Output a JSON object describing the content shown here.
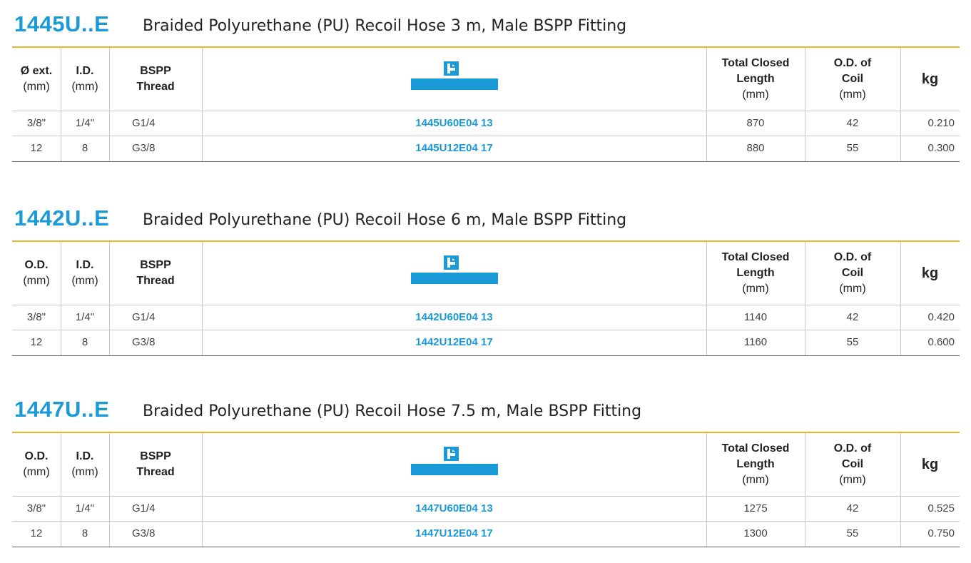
{
  "sections": [
    {
      "code": "1445U..E",
      "title": "Braided Polyurethane (PU) Recoil Hose 3 m, Male BSPP Fitting",
      "header": [
        {
          "lines": [
            "Ø ext."
          ],
          "unit": "(mm)"
        },
        {
          "lines": [
            "I.D."
          ],
          "unit": "(mm)"
        },
        {
          "lines": [
            "BSPP",
            "Thread"
          ]
        },
        {
          "lines": [
            "Total Closed",
            "Length"
          ],
          "unit": "(mm)"
        },
        {
          "lines": [
            "O.D. of",
            "Coil"
          ],
          "unit": "(mm)"
        },
        {
          "lines": [
            "kg"
          ]
        }
      ],
      "rows": [
        [
          "3/8\"",
          "1/4\"",
          "G1/4",
          "1445U60E04 13",
          "870",
          "42",
          "0.210"
        ],
        [
          "12",
          "8",
          "G3/8",
          "1445U12E04 17",
          "880",
          "55",
          "0.300"
        ]
      ]
    },
    {
      "code": "1442U..E",
      "title": "Braided Polyurethane (PU) Recoil Hose 6 m, Male BSPP Fitting",
      "header": [
        {
          "lines": [
            "O.D."
          ],
          "unit": "(mm)"
        },
        {
          "lines": [
            "I.D."
          ],
          "unit": "(mm)"
        },
        {
          "lines": [
            "BSPP",
            "Thread"
          ]
        },
        {
          "lines": [
            "Total Closed",
            "Length"
          ],
          "unit": "(mm)"
        },
        {
          "lines": [
            "O.D. of",
            "Coil"
          ],
          "unit": "(mm)"
        },
        {
          "lines": [
            "kg"
          ]
        }
      ],
      "rows": [
        [
          "3/8\"",
          "1/4\"",
          "G1/4",
          "1442U60E04 13",
          "1140",
          "42",
          "0.420"
        ],
        [
          "12",
          "8",
          "G3/8",
          "1442U12E04 17",
          "1160",
          "55",
          "0.600"
        ]
      ]
    },
    {
      "code": "1447U..E",
      "title": "Braided Polyurethane (PU) Recoil Hose 7.5 m, Male BSPP Fitting",
      "header": [
        {
          "lines": [
            "O.D."
          ],
          "unit": "(mm)"
        },
        {
          "lines": [
            "I.D."
          ],
          "unit": "(mm)"
        },
        {
          "lines": [
            "BSPP",
            "Thread"
          ]
        },
        {
          "lines": [
            "Total Closed",
            "Length"
          ],
          "unit": "(mm)"
        },
        {
          "lines": [
            "O.D. of",
            "Coil"
          ],
          "unit": "(mm)"
        },
        {
          "lines": [
            "kg"
          ]
        }
      ],
      "rows": [
        [
          "3/8\"",
          "1/4\"",
          "G1/4",
          "1447U60E04 13",
          "1275",
          "42",
          "0.525"
        ],
        [
          "12",
          "8",
          "G3/8",
          "1447U12E04 17",
          "1300",
          "55",
          "0.750"
        ]
      ]
    }
  ]
}
